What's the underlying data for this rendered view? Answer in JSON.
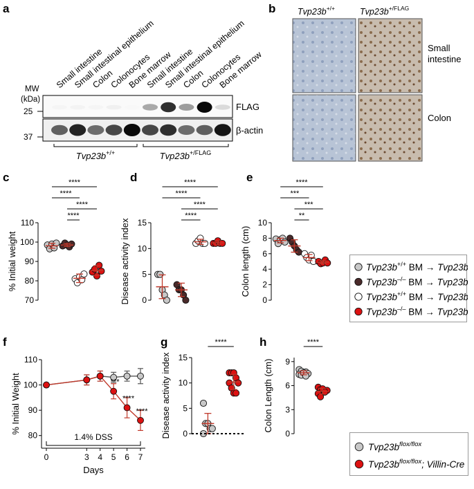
{
  "panel_a": {
    "letter": "a",
    "lanes": [
      "Small intestine",
      "Small intestinal epithelium",
      "Colon",
      "Colonocytes",
      "Bone marrow",
      "Small intestine",
      "Small intestinal epithelium",
      "Colon",
      "Colonocytes",
      "Bone marrow"
    ],
    "mw_label": "MW",
    "mw_unit": "(kDa)",
    "mw_marks": [
      "25",
      "37"
    ],
    "blots": [
      "FLAG",
      "β-actin"
    ],
    "groups": [
      {
        "base": "Tvp23b",
        "sup": "+/+"
      },
      {
        "base": "Tvp23b",
        "sup": "+/FLAG"
      }
    ],
    "flag_intensity": [
      0.04,
      0.05,
      0.04,
      0.06,
      0.03,
      0.35,
      0.85,
      0.4,
      1.0,
      0.15
    ],
    "actin_intensity": [
      0.65,
      0.9,
      0.6,
      0.75,
      1.0,
      0.75,
      0.85,
      0.6,
      0.65,
      0.95
    ]
  },
  "panel_b": {
    "letter": "b",
    "columns": [
      {
        "base": "Tvp23b",
        "sup": "+/+"
      },
      {
        "base": "Tvp23b",
        "sup": "+/FLAG"
      }
    ],
    "rows": [
      [
        "Small",
        "intestine"
      ],
      [
        "Colon"
      ]
    ]
  },
  "legend_e": [
    {
      "g1": "+/+",
      "g2": "+/+",
      "color": "#c8c8c8"
    },
    {
      "g1": "–/–",
      "g2": "+/+",
      "color": "#4a2a2a"
    },
    {
      "g1": "+/+",
      "g2": "–/–",
      "color": "#ffffff"
    },
    {
      "g1": "–/–",
      "g2": "–/–",
      "color": "#dd1111"
    }
  ],
  "legend_text": {
    "gene": "Tvp23b",
    "bm": "BM",
    "arrow": "→"
  },
  "legend_h": [
    {
      "base": "Tvp23b",
      "sup": "flox/flox",
      "suffix": "",
      "color": "#c8c8c8"
    },
    {
      "base": "Tvp23b",
      "sup": "flox/flox",
      "suffix": "; Villin-Cre",
      "color": "#dd1111"
    }
  ],
  "chart_data": [
    {
      "panel": "c",
      "type": "scatter",
      "ylabel": "% Initial weight",
      "yticks": [
        70,
        80,
        90,
        100,
        110
      ],
      "ylim": [
        70,
        110
      ],
      "groups": [
        {
          "values": [
            98.5,
            96.5,
            99,
            97,
            99.5
          ],
          "mean": 98.1,
          "sd": 1.3,
          "color": "#c8c8c8"
        },
        {
          "values": [
            98,
            99.5,
            98.5,
            97.5,
            99
          ],
          "mean": 98.5,
          "sd": 0.8,
          "color": "#4a2a2a"
        },
        {
          "values": [
            81,
            79,
            82,
            80.5,
            83.5
          ],
          "mean": 81.3,
          "sd": 2.2,
          "color": "#ffffff"
        },
        {
          "values": [
            84.5,
            86,
            82.5,
            88,
            85
          ],
          "mean": 85.3,
          "sd": 2.5,
          "color": "#dd1111"
        }
      ],
      "brackets": [
        {
          "from": 0,
          "to": 3,
          "label": "****"
        },
        {
          "from": 0,
          "to": 2,
          "label": "****"
        },
        {
          "from": 1,
          "to": 3,
          "label": "****"
        },
        {
          "from": 1,
          "to": 2,
          "label": "****"
        }
      ]
    },
    {
      "panel": "d",
      "type": "scatter",
      "ylabel": "Disease activity index",
      "yticks": [
        0,
        5,
        10,
        15
      ],
      "ylim": [
        0,
        15
      ],
      "groups": [
        {
          "values": [
            5,
            5,
            2,
            1,
            0
          ],
          "mean": 2.6,
          "sd": 2.3,
          "color": "#c8c8c8"
        },
        {
          "values": [
            3,
            2,
            2,
            1,
            0
          ],
          "mean": 2.0,
          "sd": 1.3,
          "color": "#4a2a2a"
        },
        {
          "values": [
            11,
            11.5,
            12,
            11,
            11
          ],
          "mean": 11.3,
          "sd": 0.5,
          "color": "#ffffff"
        },
        {
          "values": [
            11,
            11,
            11.5,
            11,
            11
          ],
          "mean": 11.1,
          "sd": 0.4,
          "color": "#dd1111"
        }
      ],
      "brackets": [
        {
          "from": 0,
          "to": 3,
          "label": "****"
        },
        {
          "from": 0,
          "to": 2,
          "label": "****"
        },
        {
          "from": 1,
          "to": 3,
          "label": "****"
        },
        {
          "from": 1,
          "to": 2,
          "label": "****"
        }
      ]
    },
    {
      "panel": "e",
      "type": "scatter",
      "ylabel": "Colon length (cm)",
      "yticks": [
        0,
        2,
        4,
        6,
        8,
        10
      ],
      "ylim": [
        0,
        10
      ],
      "groups": [
        {
          "values": [
            7.9,
            7.3,
            7.8,
            8.0,
            7.5
          ],
          "mean": 7.7,
          "sd": 0.3,
          "color": "#c8c8c8"
        },
        {
          "values": [
            8.0,
            7.5,
            7.0,
            6.5,
            6.2
          ],
          "mean": 7.0,
          "sd": 0.8,
          "color": "#4a2a2a"
        },
        {
          "values": [
            6.0,
            5.5,
            5.2,
            5.8,
            5.0
          ],
          "mean": 5.5,
          "sd": 0.4,
          "color": "#ffffff"
        },
        {
          "values": [
            5.0,
            4.7,
            4.8,
            5.2,
            4.8
          ],
          "mean": 4.9,
          "sd": 0.2,
          "color": "#dd1111"
        }
      ],
      "brackets": [
        {
          "from": 0,
          "to": 3,
          "label": "****"
        },
        {
          "from": 0,
          "to": 2,
          "label": "***"
        },
        {
          "from": 1,
          "to": 3,
          "label": "***"
        },
        {
          "from": 1,
          "to": 2,
          "label": "**"
        }
      ]
    },
    {
      "panel": "f",
      "type": "line",
      "ylabel": "% Initial Weight",
      "xlabel": "Days",
      "x": [
        0,
        3,
        4,
        5,
        6,
        7
      ],
      "yticks": [
        80,
        90,
        100,
        110
      ],
      "ylim": [
        75,
        110
      ],
      "series": [
        {
          "values": [
            100,
            102,
            103.5,
            103,
            103.5,
            103.5
          ],
          "err": [
            0,
            2,
            2,
            2,
            2,
            3
          ],
          "color": "#c8c8c8"
        },
        {
          "values": [
            100,
            102,
            103.5,
            97.5,
            91,
            86
          ],
          "err": [
            0,
            2,
            2,
            3,
            4,
            4
          ],
          "color": "#dd1111"
        }
      ],
      "sig": [
        {
          "x": 5,
          "label": "***"
        },
        {
          "x": 6,
          "label": "****"
        },
        {
          "x": 7,
          "label": "****"
        }
      ],
      "annotation": "1.4% DSS"
    },
    {
      "panel": "g",
      "type": "scatter",
      "ylabel": "Disease activity index",
      "yticks": [
        0,
        5,
        10,
        15
      ],
      "ylim": [
        0,
        15
      ],
      "groups": [
        {
          "values": [
            6,
            2,
            2,
            1,
            1,
            0
          ],
          "mean": 2.0,
          "sd": 2.0,
          "color": "#c8c8c8"
        },
        {
          "values": [
            12,
            12,
            12,
            11,
            10,
            10,
            9,
            8,
            8
          ],
          "mean": 10.2,
          "sd": 1.5,
          "color": "#dd1111"
        }
      ],
      "brackets": [
        {
          "from": 0,
          "to": 1,
          "label": "****"
        }
      ]
    },
    {
      "panel": "h",
      "type": "scatter",
      "ylabel": "Colon Length (cm)",
      "yticks": [
        0,
        3,
        6,
        9
      ],
      "ylim": [
        0,
        9.5
      ],
      "groups": [
        {
          "values": [
            8.0,
            7.8,
            7.6,
            7.7,
            7.5,
            7.4,
            7.3,
            7.6,
            7.2
          ],
          "mean": 7.6,
          "sd": 0.25,
          "color": "#c8c8c8"
        },
        {
          "values": [
            5.8,
            5.5,
            5.3,
            5.2,
            5.4,
            5.0,
            4.6,
            5.6,
            5.2
          ],
          "mean": 5.3,
          "sd": 0.35,
          "color": "#dd1111"
        }
      ],
      "brackets": [
        {
          "from": 0,
          "to": 1,
          "label": "****"
        }
      ]
    }
  ]
}
